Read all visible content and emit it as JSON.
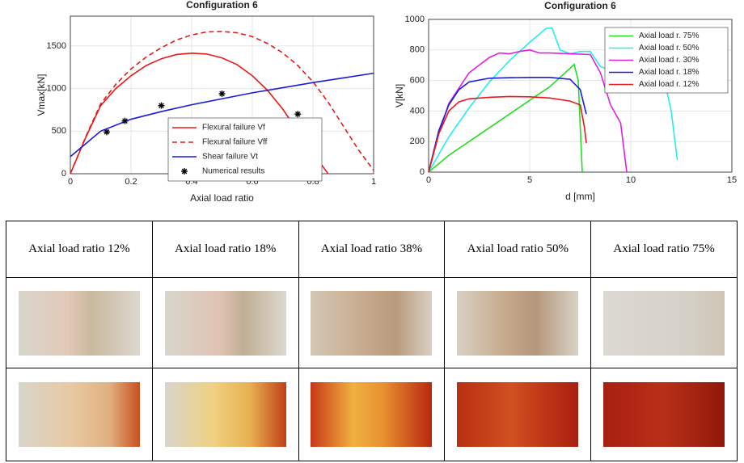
{
  "chart_data": [
    {
      "type": "line",
      "title": "Configuration 6",
      "x_label": "Axial load ratio",
      "y_label": "Vmax[kN]",
      "xlim": [
        0,
        1
      ],
      "ylim": [
        0,
        1850
      ],
      "xticks": [
        0,
        0.2,
        0.4,
        0.6,
        0.8,
        1
      ],
      "yticks": [
        0,
        500,
        1000,
        1500
      ],
      "grid": true,
      "legend": "lower-center",
      "series": [
        {
          "name": "Flexural failure Vf",
          "color": "#e8191b",
          "style": "solid",
          "x": [
            0,
            0.05,
            0.1,
            0.15,
            0.2,
            0.25,
            0.3,
            0.35,
            0.4,
            0.45,
            0.5,
            0.55,
            0.6,
            0.65,
            0.7,
            0.75,
            0.8,
            0.85
          ],
          "values": [
            0,
            420,
            800,
            1000,
            1150,
            1270,
            1350,
            1400,
            1415,
            1405,
            1360,
            1280,
            1150,
            980,
            760,
            500,
            240,
            0
          ]
        },
        {
          "name": "Flexural failure Vff",
          "color": "#e8191b",
          "style": "dashed",
          "x": [
            0,
            0.05,
            0.1,
            0.15,
            0.2,
            0.25,
            0.3,
            0.35,
            0.4,
            0.45,
            0.5,
            0.55,
            0.6,
            0.65,
            0.7,
            0.75,
            0.8,
            0.85,
            0.9,
            0.95,
            1
          ],
          "values": [
            0,
            430,
            820,
            1050,
            1230,
            1370,
            1480,
            1570,
            1630,
            1665,
            1670,
            1655,
            1610,
            1530,
            1420,
            1270,
            1080,
            840,
            560,
            280,
            40
          ]
        },
        {
          "name": "Shear failure Vt",
          "color": "#1a1adb",
          "style": "solid",
          "x": [
            0,
            0.1,
            0.2,
            0.3,
            0.4,
            0.5,
            0.6,
            0.7,
            0.8,
            0.9,
            1
          ],
          "values": [
            200,
            500,
            640,
            730,
            810,
            880,
            950,
            1010,
            1070,
            1125,
            1180
          ]
        },
        {
          "name": "Numerical results",
          "color": "#000000",
          "style": "marker",
          "x": [
            0.12,
            0.18,
            0.3,
            0.5,
            0.75
          ],
          "values": [
            490,
            620,
            800,
            940,
            700
          ]
        }
      ]
    },
    {
      "type": "line",
      "title": "Configuration 6",
      "x_label": "d [mm]",
      "y_label": "V[kN]",
      "xlim": [
        0,
        15
      ],
      "ylim": [
        0,
        1000
      ],
      "xticks": [
        0,
        5,
        10,
        15
      ],
      "yticks": [
        0,
        200,
        400,
        600,
        800,
        1000
      ],
      "grid": true,
      "legend": "upper-right",
      "series": [
        {
          "name": "Axial load r. 75%",
          "color": "#22dd22",
          "style": "solid",
          "x": [
            0,
            1,
            2,
            3,
            4,
            5,
            6,
            7,
            7.2,
            7.4,
            7.6
          ],
          "values": [
            0,
            110,
            200,
            290,
            380,
            470,
            560,
            680,
            705,
            600,
            0
          ]
        },
        {
          "name": "Axial load r. 50%",
          "color": "#22eeee",
          "style": "solid",
          "x": [
            0,
            1,
            2,
            3,
            4,
            5,
            5.8,
            6.1,
            6.5,
            7,
            7.5,
            8,
            8.5,
            9,
            10,
            11,
            11.5,
            12,
            12.3
          ],
          "values": [
            0,
            230,
            420,
            590,
            730,
            850,
            940,
            945,
            800,
            775,
            790,
            790,
            690,
            670,
            690,
            720,
            700,
            400,
            80
          ]
        },
        {
          "name": "Axial load r. 30%",
          "color": "#e020e0",
          "style": "solid",
          "x": [
            0,
            0.5,
            1,
            2,
            3,
            3.5,
            4,
            4.5,
            5,
            5.5,
            6,
            7,
            8,
            8.5,
            9,
            9.5,
            9.8
          ],
          "values": [
            0,
            250,
            450,
            650,
            750,
            780,
            775,
            790,
            800,
            780,
            780,
            775,
            770,
            650,
            440,
            320,
            0
          ]
        },
        {
          "name": "Axial load r. 18%",
          "color": "#1a1adb",
          "style": "solid",
          "x": [
            0,
            0.5,
            1,
            1.5,
            2,
            3,
            4,
            5,
            6,
            7,
            7.5,
            7.8
          ],
          "values": [
            0,
            270,
            440,
            540,
            590,
            615,
            618,
            620,
            620,
            608,
            540,
            380
          ]
        },
        {
          "name": "Axial load r. 12%",
          "color": "#e8191b",
          "style": "solid",
          "x": [
            0,
            0.5,
            1,
            1.5,
            2,
            3,
            4,
            5,
            6,
            7,
            7.5,
            7.7,
            7.8
          ],
          "values": [
            0,
            250,
            400,
            460,
            480,
            490,
            495,
            493,
            485,
            465,
            440,
            300,
            190
          ]
        }
      ]
    }
  ],
  "table": {
    "header": [
      "Axial load ratio 12%",
      "Axial load ratio 18%",
      "Axial load ratio 38%",
      "Axial load ratio 50%",
      "Axial load ratio 75%"
    ]
  }
}
